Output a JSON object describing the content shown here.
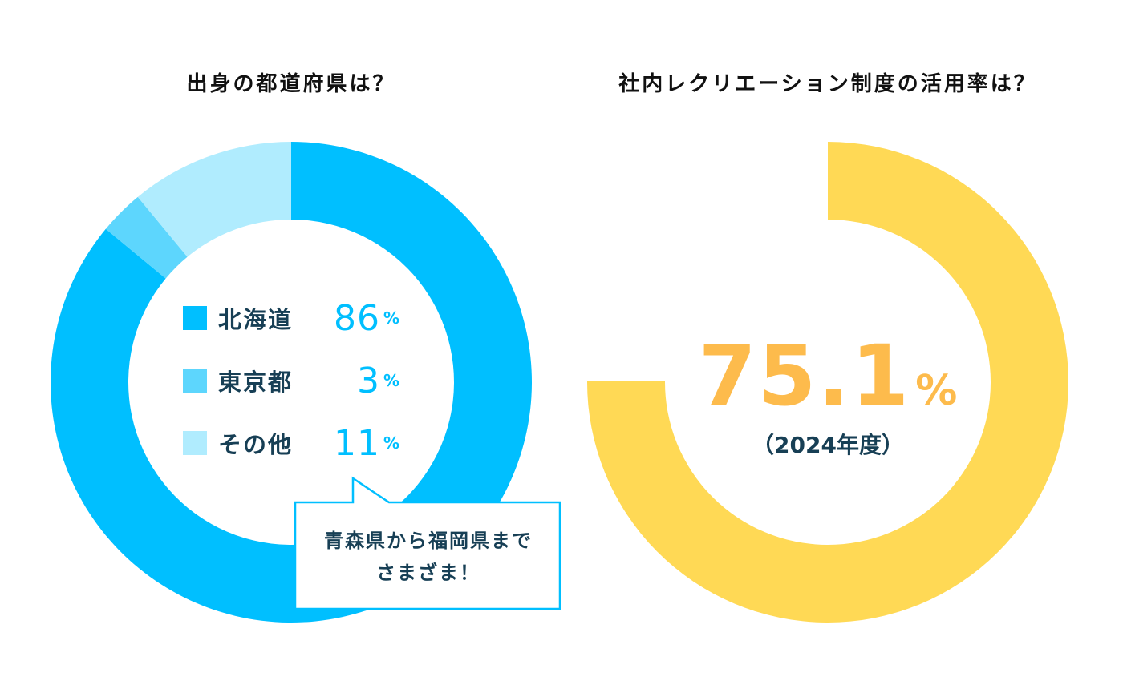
{
  "chart_data": [
    {
      "type": "pie",
      "title": "出身の都道府県は？",
      "categories": [
        "北海道",
        "東京都",
        "その他"
      ],
      "values": [
        86,
        3,
        11
      ],
      "unit": "%",
      "colors": [
        "#00bfff",
        "#5dd6fd",
        "#b0ecfe"
      ],
      "donut": true,
      "legend": "center",
      "annotation": [
        "青森県から福岡県まで",
        "さまざま！"
      ]
    },
    {
      "type": "pie",
      "title": "社内レクリエーション制度の活用率は？",
      "values": [
        75.1
      ],
      "value_label": "75.1",
      "unit": "%",
      "sublabel": "（2024年度）",
      "colors": [
        "#ffd955"
      ],
      "donut": true
    }
  ],
  "colors": {
    "text": "#173f55",
    "accent_blue": "#00bfff",
    "accent_orange": "#fdbb4c"
  }
}
